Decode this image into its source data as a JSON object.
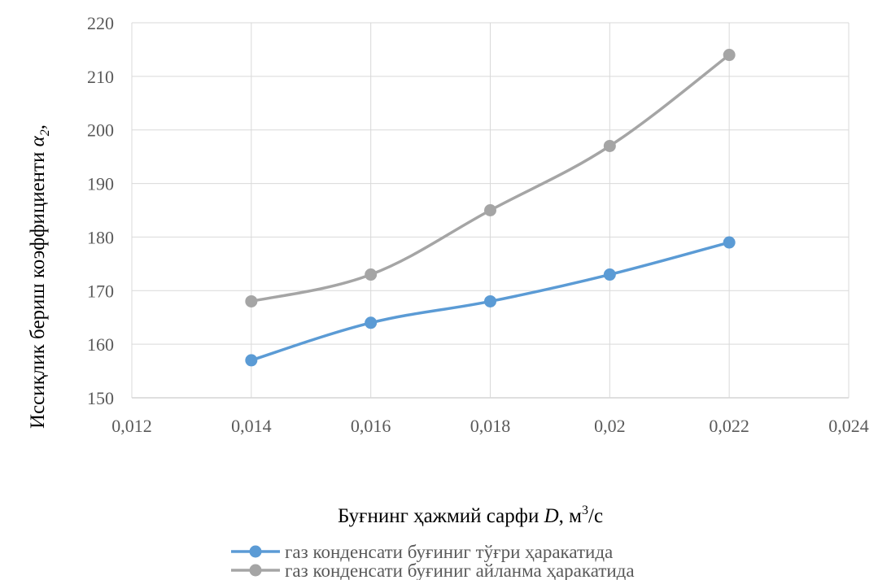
{
  "chart_data": {
    "type": "line",
    "smooth": true,
    "x": [
      0.014,
      0.016,
      0.018,
      0.02,
      0.022
    ],
    "series": [
      {
        "name": "газ конденсати буғиниг тўғри ҳаракатида",
        "values": [
          157,
          164,
          168,
          173,
          179
        ],
        "color": "#5b9bd5"
      },
      {
        "name": "газ конденсати буғиниг айланма ҳаракатида",
        "values": [
          168,
          173,
          185,
          197,
          214
        ],
        "color": "#a5a5a5"
      }
    ],
    "xlim": [
      0.012,
      0.024
    ],
    "ylim": [
      150,
      220
    ],
    "x_ticks": [
      0.012,
      0.014,
      0.016,
      0.018,
      0.02,
      0.022,
      0.024
    ],
    "x_tick_labels": [
      "0,012",
      "0,014",
      "0,016",
      "0,018",
      "0,02",
      "0,022",
      "0,024"
    ],
    "y_ticks": [
      150,
      160,
      170,
      180,
      190,
      200,
      210,
      220
    ],
    "y_tick_labels": [
      "150",
      "160",
      "170",
      "180",
      "190",
      "200",
      "210",
      "220"
    ],
    "xlabel": {
      "prefix": "Буғнинг ҳажмий сарфи ",
      "var": "D",
      "sep": ", м",
      "sup": "3",
      "suffix": "/с"
    },
    "ylabel": {
      "text": "Иссиқлик бериш коэффициенти ",
      "symbol": "α",
      "sub": "2",
      "suffix": ","
    },
    "grid": true,
    "legend_position": "bottom",
    "gridline_color": "#d9d9d9",
    "axis_color": "#bfbfbf"
  }
}
